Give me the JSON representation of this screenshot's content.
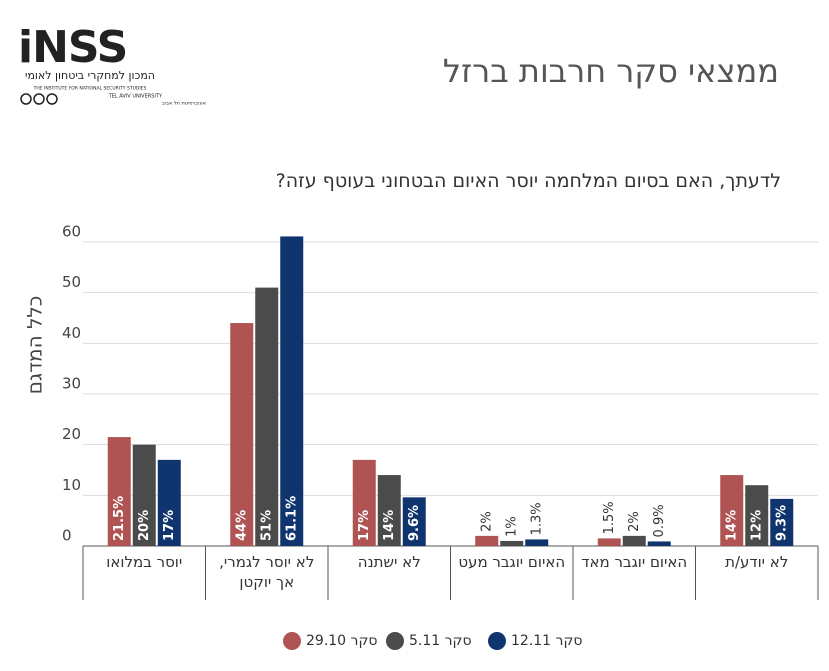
{
  "logo": {
    "mark": "iNSS",
    "name_he": "המכון למחקרי ביטחון לאומי",
    "name_en": "THE INSTITUTE FOR NATIONAL SECURITY STUDIES",
    "univ_en": "TEL AVIV UNIVERSITY",
    "univ_he": "אוניברסיטת תל אביב"
  },
  "chart_data": {
    "type": "bar",
    "title": "ממצאי סקר חרבות ברזל",
    "subtitle": "לדעתך, האם בסיום המלחמה יוסר האיום הבטחוני בעוטף עזה?",
    "ylabel": "כלל המדגם",
    "categories": [
      "יוסר במלואו",
      "לא יוסר לגמרי, אך יוקטן",
      "לא ישתנה",
      "האיום יוגבר מעט",
      "האיום יוגבר מאד",
      "לא יודע/ת"
    ],
    "series": [
      {
        "name": "סקר 29.10",
        "color": "#b05353",
        "values": [
          21.5,
          44,
          17,
          2,
          1.5,
          14
        ],
        "value_labels": [
          "21.5%",
          "44%",
          "17%",
          "2%",
          "1.5%",
          "14%"
        ]
      },
      {
        "name": "סקר 5.11",
        "color": "#4b4b4b",
        "values": [
          20,
          51,
          14,
          1,
          2,
          12
        ],
        "value_labels": [
          "20%",
          "51%",
          "14%",
          "1%",
          "2%",
          "12%"
        ]
      },
      {
        "name": "סקר 12.11",
        "color": "#0f346e",
        "values": [
          17,
          61.1,
          9.6,
          1.3,
          0.9,
          9.3
        ],
        "value_labels": [
          "17%",
          "61.1%",
          "9.6%",
          "1.3%",
          "0.9%",
          "9.3%"
        ]
      }
    ],
    "ylim": [
      0,
      60
    ],
    "yticks": [
      0,
      10,
      20,
      30,
      40,
      50,
      60
    ],
    "grid": true
  }
}
